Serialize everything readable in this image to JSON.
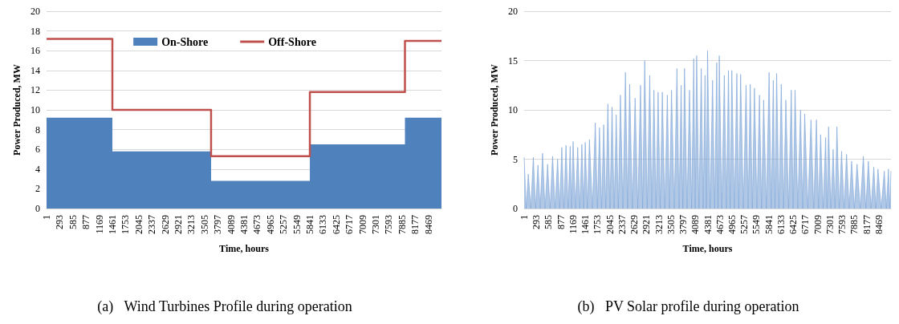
{
  "chart_data": [
    {
      "type": "area",
      "title": "(a)   Wind Turbines Profile during operation",
      "xlabel": "Time, hours",
      "ylabel": "Power Produced, MW",
      "xlim": [
        1,
        8760
      ],
      "xticks": [
        1,
        293,
        585,
        877,
        1169,
        1461,
        1753,
        2045,
        2337,
        2629,
        2921,
        3213,
        3505,
        3797,
        4089,
        4381,
        4673,
        4965,
        5257,
        5549,
        5841,
        6133,
        6425,
        6717,
        7009,
        7301,
        7593,
        7885,
        8177,
        8469
      ],
      "ylim": [
        0,
        20
      ],
      "yticks": [
        0,
        2,
        4,
        6,
        8,
        10,
        12,
        14,
        16,
        18,
        20
      ],
      "grid": "y",
      "legend": "top",
      "series": [
        {
          "name": "On-Shore",
          "type": "area",
          "color": "#4f81bd",
          "x": [
            1,
            1461,
            1461,
            3650,
            3650,
            5841,
            5841,
            7950,
            7950,
            8760
          ],
          "values": [
            9.2,
            9.2,
            5.8,
            5.8,
            2.8,
            2.8,
            6.5,
            6.5,
            9.2,
            9.2
          ]
        },
        {
          "name": "Off-Shore",
          "type": "step",
          "color": "#c0504d",
          "x": [
            1,
            1461,
            3650,
            5841,
            7950,
            8760
          ],
          "values": [
            17.2,
            10.0,
            5.3,
            11.8,
            17.0,
            17.0
          ]
        }
      ]
    },
    {
      "type": "area",
      "title": "(b)   PV Solar profile during operation",
      "xlabel": "Time, hours",
      "ylabel": "Power Produced, MW",
      "xlim": [
        1,
        8760
      ],
      "xticks": [
        1,
        293,
        585,
        877,
        1169,
        1461,
        1753,
        2045,
        2337,
        2629,
        2921,
        3213,
        3505,
        3797,
        4089,
        4381,
        4673,
        4965,
        5257,
        5549,
        5841,
        6133,
        6425,
        6717,
        7009,
        7301,
        7593,
        7885,
        8177,
        8469
      ],
      "ylim": [
        0,
        20
      ],
      "yticks": [
        0,
        5,
        10,
        15,
        20
      ],
      "grid": "y",
      "series": [
        {
          "type": "area",
          "color": "#7ba3d6",
          "x": [
            1,
            50,
            100,
            160,
            220,
            275,
            330,
            385,
            440,
            500,
            560,
            620,
            680,
            740,
            800,
            850,
            900,
            950,
            1000,
            1050,
            1100,
            1135,
            1170,
            1225,
            1280,
            1330,
            1380,
            1420,
            1460,
            1510,
            1560,
            1630,
            1700,
            1750,
            1800,
            1850,
            1900,
            1950,
            2000,
            2050,
            2100,
            2150,
            2200,
            2250,
            2300,
            2360,
            2420,
            2470,
            2520,
            2585,
            2650,
            2715,
            2780,
            2830,
            2880,
            2940,
            3000,
            3050,
            3100,
            3150,
            3200,
            3250,
            3300,
            3360,
            3420,
            3470,
            3520,
            3585,
            3650,
            3700,
            3750,
            3790,
            3830,
            3890,
            3950,
            4000,
            4050,
            4085,
            4120,
            4175,
            4230,
            4275,
            4320,
            4350,
            4380,
            4440,
            4500,
            4550,
            4600,
            4630,
            4660,
            4720,
            4780,
            4830,
            4880,
            4920,
            4960,
            5020,
            5080,
            5125,
            5170,
            5235,
            5300,
            5350,
            5400,
            5450,
            5500,
            5560,
            5620,
            5670,
            5720,
            5785,
            5850,
            5900,
            5950,
            5990,
            6030,
            6085,
            6140,
            6195,
            6250,
            6315,
            6380,
            6425,
            6470,
            6535,
            6600,
            6650,
            6700,
            6775,
            6850,
            6915,
            6980,
            7030,
            7080,
            7140,
            7200,
            7235,
            7270,
            7325,
            7380,
            7425,
            7470,
            7525,
            7580,
            7640,
            7700,
            7760,
            7820,
            7885,
            7950,
            8025,
            8100,
            8160,
            8220,
            8285,
            8350,
            8400,
            8450,
            8525,
            8600,
            8650,
            8700,
            8730,
            8760
          ],
          "values": [
            5.2,
            0,
            3.5,
            0,
            5.2,
            0,
            4.4,
            0,
            5.6,
            0,
            4.5,
            0,
            5.3,
            0,
            5.0,
            0,
            6.2,
            0,
            6.4,
            0,
            6.3,
            0,
            6.8,
            0,
            6.2,
            0,
            6.5,
            0,
            6.7,
            0,
            7.0,
            0,
            8.7,
            0,
            8.2,
            0,
            8.5,
            0,
            10.6,
            0,
            10.3,
            0,
            9.5,
            0,
            11.5,
            0,
            13.8,
            0,
            12.6,
            0,
            11.2,
            0,
            12.5,
            0,
            15.0,
            0,
            13.5,
            0,
            12.0,
            0,
            11.8,
            0,
            11.8,
            0,
            11.5,
            0,
            12.0,
            0,
            14.2,
            0,
            12.5,
            0,
            14.2,
            0,
            12.0,
            0,
            15.2,
            0,
            15.5,
            0,
            14.2,
            0,
            13.5,
            0,
            16.0,
            0,
            13.0,
            0,
            14.8,
            0,
            15.5,
            0,
            13.5,
            0,
            14.0,
            0,
            14.0,
            0,
            13.7,
            0,
            13.6,
            0,
            12.5,
            0,
            12.6,
            0,
            12.2,
            0,
            11.5,
            0,
            11.0,
            0,
            13.8,
            0,
            13.0,
            0,
            13.7,
            0,
            12.6,
            0,
            11.0,
            0,
            12.0,
            0,
            12.0,
            0,
            10.0,
            0,
            9.6,
            0,
            9.0,
            0,
            9.0,
            0,
            7.5,
            0,
            7.2,
            0,
            8.3,
            0,
            6.0,
            0,
            8.3,
            0,
            5.8,
            0,
            5.5,
            0,
            4.8,
            0,
            4.5,
            0,
            5.3,
            0,
            4.8,
            0,
            4.2,
            0,
            4.0,
            0,
            3.8,
            0,
            4.0,
            0,
            3.8
          ]
        }
      ]
    }
  ]
}
